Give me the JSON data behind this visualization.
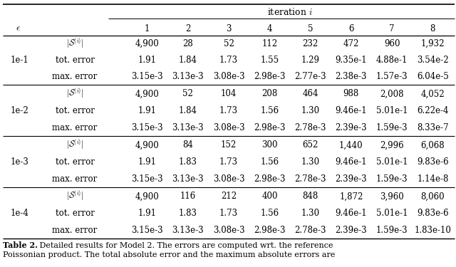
{
  "col_header": [
    "1",
    "2",
    "3",
    "4",
    "5",
    "6",
    "7",
    "8"
  ],
  "epsilon_labels": [
    "1e-1",
    "1e-2",
    "1e-3",
    "1e-4"
  ],
  "table_data": {
    "1e-1": {
      "S": [
        "4,900",
        "28",
        "52",
        "112",
        "232",
        "472",
        "960",
        "1,932"
      ],
      "tot": [
        "1.91",
        "1.84",
        "1.73",
        "1.55",
        "1.29",
        "9.35e-1",
        "4.88e-1",
        "3.54e-2"
      ],
      "max": [
        "3.15e-3",
        "3.13e-3",
        "3.08e-3",
        "2.98e-3",
        "2.77e-3",
        "2.38e-3",
        "1.57e-3",
        "6.04e-5"
      ]
    },
    "1e-2": {
      "S": [
        "4,900",
        "52",
        "104",
        "208",
        "464",
        "988",
        "2,008",
        "4,052"
      ],
      "tot": [
        "1.91",
        "1.84",
        "1.73",
        "1.56",
        "1.30",
        "9.46e-1",
        "5.01e-1",
        "6.22e-4"
      ],
      "max": [
        "3.15e-3",
        "3.13e-3",
        "3.08e-3",
        "2.98e-3",
        "2.78e-3",
        "2.39e-3",
        "1.59e-3",
        "8.33e-7"
      ]
    },
    "1e-3": {
      "S": [
        "4,900",
        "84",
        "152",
        "300",
        "652",
        "1,440",
        "2,996",
        "6,068"
      ],
      "tot": [
        "1.91",
        "1.83",
        "1.73",
        "1.56",
        "1.30",
        "9.46e-1",
        "5.01e-1",
        "9.83e-6"
      ],
      "max": [
        "3.15e-3",
        "3.13e-3",
        "3.08e-3",
        "2.98e-3",
        "2.78e-3",
        "2.39e-3",
        "1.59e-3",
        "1.14e-8"
      ]
    },
    "1e-4": {
      "S": [
        "4,900",
        "116",
        "212",
        "400",
        "848",
        "1,872",
        "3,960",
        "8,060"
      ],
      "tot": [
        "1.91",
        "1.83",
        "1.73",
        "1.56",
        "1.30",
        "9.46e-1",
        "5.01e-1",
        "9.83e-6"
      ],
      "max": [
        "3.15e-3",
        "3.13e-3",
        "3.08e-3",
        "2.98e-3",
        "2.78e-3",
        "2.39e-3",
        "1.59e-3",
        "1.83e-10"
      ]
    }
  },
  "caption_bold": "Table 2.",
  "caption_rest1": " Detailed results for Model 2. The errors are computed wrt. the reference",
  "caption_line2": "Poissonian product. The total absolute error and the maximum absolute errors are",
  "background_color": "#ffffff",
  "font_size": 8.5
}
